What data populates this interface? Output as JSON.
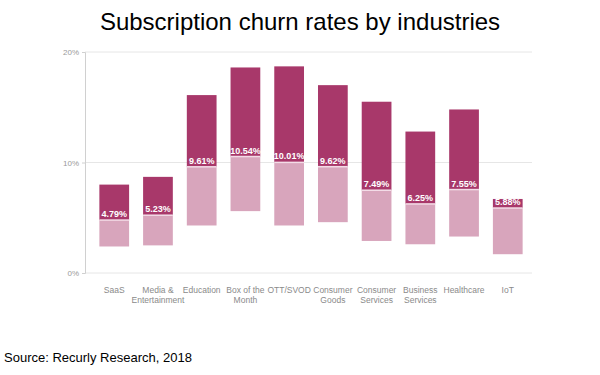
{
  "chart_data": {
    "type": "bar",
    "title": "Subscription churn rates by industries",
    "source": "Source: Recurly Research, 2018",
    "categories": [
      "SaaS",
      "Media & Entertainment",
      "Education",
      "Box of the Month",
      "OTT/SVOD",
      "Consumer Goods",
      "Consumer Services",
      "Business Services",
      "Healthcare",
      "IoT"
    ],
    "low": [
      2.4,
      2.5,
      4.3,
      5.6,
      4.3,
      4.6,
      2.9,
      2.6,
      3.3,
      1.7
    ],
    "values": [
      4.79,
      5.23,
      9.61,
      10.54,
      10.01,
      9.62,
      7.49,
      6.25,
      7.55,
      5.88
    ],
    "value_labels": [
      "4.79%",
      "5.23%",
      "9.61%",
      "10.54%",
      "10.01%",
      "9.62%",
      "7.49%",
      "6.25%",
      "7.55%",
      "5.88%"
    ],
    "high": [
      8.0,
      8.7,
      16.1,
      18.6,
      18.7,
      17.0,
      15.5,
      12.8,
      14.8,
      6.7
    ],
    "color": "#a8386a",
    "data_labels": true,
    "grid": true,
    "ylim": [
      0,
      20
    ],
    "yticks": [
      {
        "value": 0,
        "label": "0%"
      },
      {
        "value": 10,
        "label": "10%"
      },
      {
        "value": 20,
        "label": "20%"
      }
    ]
  }
}
